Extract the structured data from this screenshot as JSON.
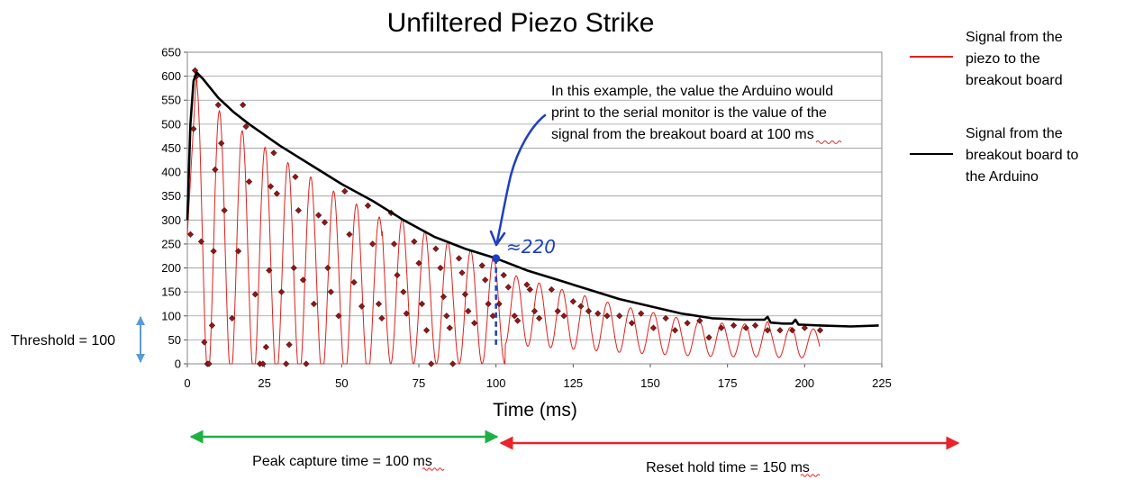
{
  "chart_data": {
    "type": "line",
    "title": "Unfiltered Piezo Strike",
    "xlabel": "Time (ms)",
    "ylabel": "",
    "xlim": [
      0,
      225
    ],
    "ylim": [
      0,
      650
    ],
    "xticks": [
      "0",
      "25",
      "50",
      "75",
      "100",
      "125",
      "150",
      "175",
      "200",
      "225"
    ],
    "yticks": [
      "0",
      "50",
      "100",
      "150",
      "200",
      "250",
      "300",
      "350",
      "400",
      "450",
      "500",
      "550",
      "600",
      "650"
    ],
    "grid": "horizontal",
    "series": [
      {
        "name": "Signal from the piezo to the breakout board",
        "color": "#e0201c",
        "marker_color": "#8b1a1a",
        "style": "oscillating",
        "period_ms": 7.4,
        "start_ms": 3,
        "end_ms": 205,
        "points": [
          {
            "x": 1,
            "y": 270
          },
          {
            "x": 2,
            "y": 490
          },
          {
            "x": 2.5,
            "y": 612
          },
          {
            "x": 3,
            "y": 600
          },
          {
            "x": 4.5,
            "y": 255
          },
          {
            "x": 5.5,
            "y": 45
          },
          {
            "x": 6.5,
            "y": 0
          },
          {
            "x": 7,
            "y": 0
          },
          {
            "x": 8,
            "y": 80
          },
          {
            "x": 8.5,
            "y": 235
          },
          {
            "x": 9,
            "y": 405
          },
          {
            "x": 10,
            "y": 540
          },
          {
            "x": 11,
            "y": 460
          },
          {
            "x": 12,
            "y": 320
          },
          {
            "x": 14.5,
            "y": 95
          },
          {
            "x": 16.5,
            "y": 235
          },
          {
            "x": 18,
            "y": 540
          },
          {
            "x": 19,
            "y": 495
          },
          {
            "x": 20,
            "y": 380
          },
          {
            "x": 22,
            "y": 145
          },
          {
            "x": 23.5,
            "y": 0
          },
          {
            "x": 24.5,
            "y": 0
          },
          {
            "x": 25.5,
            "y": 35
          },
          {
            "x": 26.5,
            "y": 195
          },
          {
            "x": 27,
            "y": 370
          },
          {
            "x": 28,
            "y": 440
          },
          {
            "x": 29,
            "y": 355
          },
          {
            "x": 30.5,
            "y": 150
          },
          {
            "x": 32,
            "y": 0
          },
          {
            "x": 33,
            "y": 40
          },
          {
            "x": 34.5,
            "y": 200
          },
          {
            "x": 35,
            "y": 390
          },
          {
            "x": 36,
            "y": 320
          },
          {
            "x": 37.5,
            "y": 175
          },
          {
            "x": 38.5,
            "y": 0
          },
          {
            "x": 41,
            "y": 125
          },
          {
            "x": 42.5,
            "y": 310
          },
          {
            "x": 44.5,
            "y": 295
          },
          {
            "x": 45.5,
            "y": 200
          },
          {
            "x": 46.5,
            "y": 150
          },
          {
            "x": 49,
            "y": 100
          },
          {
            "x": 51,
            "y": 360
          },
          {
            "x": 52.5,
            "y": 270
          },
          {
            "x": 54,
            "y": 170
          },
          {
            "x": 56.5,
            "y": 120
          },
          {
            "x": 58.5,
            "y": 330
          },
          {
            "x": 60,
            "y": 250
          },
          {
            "x": 62,
            "y": 125
          },
          {
            "x": 63,
            "y": 95
          },
          {
            "x": 66,
            "y": 315
          },
          {
            "x": 67,
            "y": 250
          },
          {
            "x": 68,
            "y": 185
          },
          {
            "x": 70,
            "y": 150
          },
          {
            "x": 71,
            "y": 105
          },
          {
            "x": 73.5,
            "y": 255
          },
          {
            "x": 75,
            "y": 210
          },
          {
            "x": 76,
            "y": 125
          },
          {
            "x": 77.5,
            "y": 70
          },
          {
            "x": 79,
            "y": 0
          },
          {
            "x": 80.5,
            "y": 240
          },
          {
            "x": 82,
            "y": 200
          },
          {
            "x": 83,
            "y": 140
          },
          {
            "x": 84,
            "y": 100
          },
          {
            "x": 85,
            "y": 75
          },
          {
            "x": 86,
            "y": 0
          },
          {
            "x": 88,
            "y": 220
          },
          {
            "x": 89,
            "y": 190
          },
          {
            "x": 90,
            "y": 145
          },
          {
            "x": 91,
            "y": 110
          },
          {
            "x": 93,
            "y": 85
          },
          {
            "x": 95.5,
            "y": 205
          },
          {
            "x": 96.5,
            "y": 175
          },
          {
            "x": 97.5,
            "y": 125
          },
          {
            "x": 99,
            "y": 100
          },
          {
            "x": 101,
            "y": 125
          },
          {
            "x": 102.5,
            "y": 185
          },
          {
            "x": 104,
            "y": 160
          },
          {
            "x": 106,
            "y": 100
          },
          {
            "x": 107,
            "y": 90
          },
          {
            "x": 110,
            "y": 165
          },
          {
            "x": 111,
            "y": 155
          },
          {
            "x": 112.5,
            "y": 110
          },
          {
            "x": 114,
            "y": 95
          },
          {
            "x": 118,
            "y": 155
          },
          {
            "x": 120,
            "y": 110
          },
          {
            "x": 122,
            "y": 100
          },
          {
            "x": 125,
            "y": 130
          },
          {
            "x": 127.5,
            "y": 120
          },
          {
            "x": 130,
            "y": 110
          },
          {
            "x": 133,
            "y": 105
          },
          {
            "x": 136,
            "y": 100
          },
          {
            "x": 140,
            "y": 100
          },
          {
            "x": 144,
            "y": 85
          },
          {
            "x": 147,
            "y": 105
          },
          {
            "x": 151,
            "y": 75
          },
          {
            "x": 155,
            "y": 95
          },
          {
            "x": 158,
            "y": 70
          },
          {
            "x": 162,
            "y": 85
          },
          {
            "x": 166,
            "y": 90
          },
          {
            "x": 169,
            "y": 55
          },
          {
            "x": 173,
            "y": 75
          },
          {
            "x": 177,
            "y": 80
          },
          {
            "x": 181,
            "y": 75
          },
          {
            "x": 184,
            "y": 80
          },
          {
            "x": 188,
            "y": 70
          },
          {
            "x": 192,
            "y": 70
          },
          {
            "x": 196,
            "y": 70
          },
          {
            "x": 200,
            "y": 75
          },
          {
            "x": 205,
            "y": 70
          }
        ]
      },
      {
        "name": "Signal from the breakout board to the Arduino",
        "color": "#000000",
        "style": "envelope",
        "points": [
          {
            "x": 0,
            "y": 300
          },
          {
            "x": 1,
            "y": 500
          },
          {
            "x": 2,
            "y": 590
          },
          {
            "x": 3,
            "y": 608
          },
          {
            "x": 5,
            "y": 595
          },
          {
            "x": 10,
            "y": 555
          },
          {
            "x": 15,
            "y": 525
          },
          {
            "x": 20,
            "y": 500
          },
          {
            "x": 30,
            "y": 455
          },
          {
            "x": 40,
            "y": 415
          },
          {
            "x": 50,
            "y": 375
          },
          {
            "x": 60,
            "y": 340
          },
          {
            "x": 70,
            "y": 300
          },
          {
            "x": 80,
            "y": 265
          },
          {
            "x": 90,
            "y": 240
          },
          {
            "x": 100,
            "y": 220
          },
          {
            "x": 110,
            "y": 195
          },
          {
            "x": 120,
            "y": 175
          },
          {
            "x": 130,
            "y": 155
          },
          {
            "x": 140,
            "y": 135
          },
          {
            "x": 150,
            "y": 120
          },
          {
            "x": 160,
            "y": 105
          },
          {
            "x": 170,
            "y": 95
          },
          {
            "x": 180,
            "y": 92
          },
          {
            "x": 187,
            "y": 92
          },
          {
            "x": 188,
            "y": 98
          },
          {
            "x": 189,
            "y": 86
          },
          {
            "x": 193,
            "y": 84
          },
          {
            "x": 196,
            "y": 84
          },
          {
            "x": 197,
            "y": 92
          },
          {
            "x": 198,
            "y": 82
          },
          {
            "x": 205,
            "y": 80
          },
          {
            "x": 215,
            "y": 78
          },
          {
            "x": 224,
            "y": 80
          }
        ]
      }
    ]
  },
  "annotations": {
    "callout_text": [
      "In this example, the value the Arduino would",
      "print to the serial monitor is the value of the",
      "signal from the breakout board at 100 ms"
    ],
    "callout_value_label": "≈220",
    "callout_point": {
      "x": 100,
      "y": 220
    },
    "threshold_label": "Threshold = 100",
    "threshold_value": 100,
    "peak_capture_label": "Peak capture time = 100 ms",
    "reset_hold_label": "Reset hold time = 150 ms",
    "colors": {
      "green_arrow": "#1db043",
      "red_arrow": "#e8232a",
      "blue_annotation": "#1d3fbf",
      "threshold_arrow": "#5a9ad5"
    }
  },
  "legend": {
    "placement": "right",
    "items": [
      {
        "lines": [
          "Signal from the",
          "piezo to the",
          "breakout board"
        ],
        "color": "#e0201c"
      },
      {
        "lines": [
          "Signal from the",
          "breakout board to",
          "the Arduino"
        ],
        "color": "#000000"
      }
    ]
  }
}
